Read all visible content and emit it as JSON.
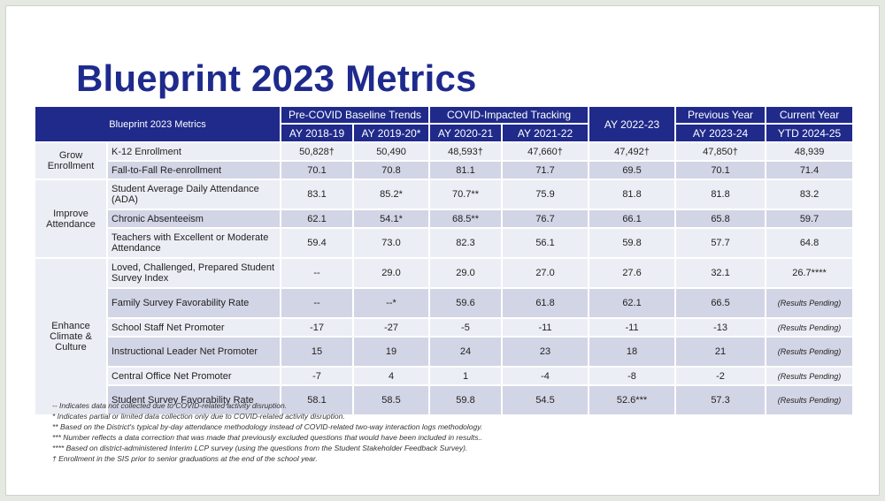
{
  "title": "Blueprint 2023 Metrics",
  "table": {
    "header": {
      "metrics": "Blueprint 2023 Metrics",
      "pre_covid": "Pre-COVID Baseline Trends",
      "covid": "COVID-Impacted Tracking",
      "ay_2022_23": "AY 2022-23",
      "previous": "Previous Year",
      "current": "Current Year",
      "years": [
        "AY 2018-19",
        "AY 2019-20*",
        "AY 2020-21",
        "AY 2021-22",
        "AY 2023-24",
        "YTD 2024-25"
      ]
    },
    "groups": [
      {
        "label": "Grow Enrollment",
        "rows": [
          {
            "metric": "K-12 Enrollment",
            "cells": [
              "50,828†",
              "50,490",
              "48,593†",
              "47,660†",
              "47,492†",
              "47,850†",
              "48,939"
            ]
          },
          {
            "metric": "Fall-to-Fall Re-enrollment",
            "cells": [
              "70.1",
              "70.8",
              "81.1",
              "71.7",
              "69.5",
              "70.1",
              "71.4"
            ]
          }
        ]
      },
      {
        "label": "Improve Attendance",
        "rows": [
          {
            "metric": "Student Average Daily Attendance (ADA)",
            "cells": [
              "83.1",
              "85.2*",
              "70.7**",
              "75.9",
              "81.8",
              "81.8",
              "83.2"
            ]
          },
          {
            "metric": "Chronic Absenteeism",
            "cells": [
              "62.1",
              "54.1*",
              "68.5**",
              "76.7",
              "66.1",
              "65.8",
              "59.7"
            ]
          },
          {
            "metric": "Teachers with Excellent or Moderate Attendance",
            "cells": [
              "59.4",
              "73.0",
              "82.3",
              "56.1",
              "59.8",
              "57.7",
              "64.8"
            ]
          }
        ]
      },
      {
        "label": "Enhance Climate & Culture",
        "rows": [
          {
            "metric": "Loved, Challenged, Prepared Student Survey Index",
            "cells": [
              "--",
              "29.0",
              "29.0",
              "27.0",
              "27.6",
              "32.1",
              "26.7****"
            ]
          },
          {
            "metric": "Family Survey Favorability Rate",
            "cells": [
              "--",
              "--*",
              "59.6",
              "61.8",
              "62.1",
              "66.5",
              "(Results Pending)"
            ]
          },
          {
            "metric": "School Staff Net Promoter",
            "cells": [
              "-17",
              "-27",
              "-5",
              "-11",
              "-11",
              "-13",
              "(Results Pending)"
            ]
          },
          {
            "metric": "Instructional Leader Net Promoter",
            "cells": [
              "15",
              "19",
              "24",
              "23",
              "18",
              "21",
              "(Results Pending)"
            ]
          },
          {
            "metric": "Central Office Net Promoter",
            "cells": [
              "-7",
              "4",
              "1",
              "-4",
              "-8",
              "-2",
              "(Results Pending)"
            ]
          },
          {
            "metric": "Student Survey Favorability Rate",
            "cells": [
              "58.1",
              "58.5",
              "59.8",
              "54.5",
              "52.6***",
              "57.3",
              "(Results Pending)"
            ]
          }
        ]
      }
    ]
  },
  "footnotes": [
    "-- Indicates data not collected due to COVID-related activity disruption.",
    "*  Indicates partial or limited data collection only due to COVID-related activity disruption.",
    "** Based on the District's typical by-day attendance methodology instead of COVID-related two-way interaction logs methodology.",
    "*** Number reflects a data correction that was made that previously excluded questions that would have been included in results..",
    "**** Based on district-administered Interim LCP survey (using the questions from the Student Stakeholder Feedback Survey).",
    "† Enrollment in the SIS prior to senior graduations at the end of the school year."
  ]
}
